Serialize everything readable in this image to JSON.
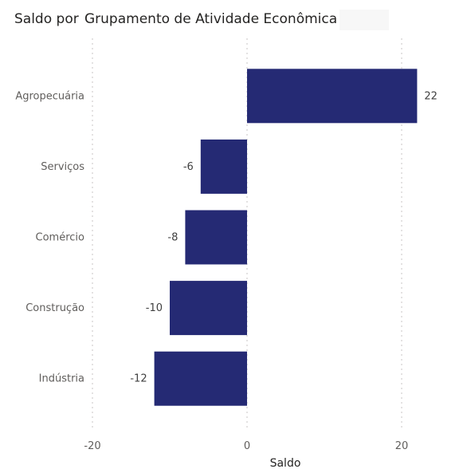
{
  "title_part1": "Saldo por",
  "title_part2": "Grupamento de Atividade Econômica",
  "chart_data": {
    "type": "bar",
    "orientation": "horizontal",
    "categories": [
      "Agropecuária",
      "Serviços",
      "Comércio",
      "Construção",
      "Indústria"
    ],
    "values": [
      22,
      -6,
      -8,
      -10,
      -12
    ],
    "xlabel": "Saldo",
    "ylabel": "",
    "xlim": [
      -20,
      22
    ],
    "xticks": [
      -20,
      0,
      20
    ],
    "grid": "vertical-dotted",
    "bar_color": "#252a74"
  }
}
